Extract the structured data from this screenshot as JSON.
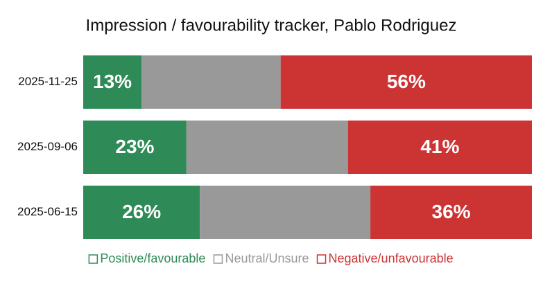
{
  "chart_data": {
    "type": "stacked-bar",
    "orientation": "horizontal",
    "title": "Impression / favourability tracker, Pablo Rodriguez",
    "categories": [
      "2025-11-25",
      "2025-09-06",
      "2025-06-15"
    ],
    "xlim": [
      0,
      100
    ],
    "series": [
      {
        "name": "Positive/favourable",
        "color": "#2e8b57",
        "values": [
          13,
          23,
          26
        ],
        "value_labels": [
          "13%",
          "23%",
          "26%"
        ]
      },
      {
        "name": "Neutral/Unsure",
        "color": "#999999",
        "values": [
          31,
          36,
          38
        ]
      },
      {
        "name": "Negative/unfavourable",
        "color": "#cc3333",
        "values": [
          56,
          41,
          36
        ],
        "value_labels": [
          "56%",
          "41%",
          "36%"
        ]
      }
    ],
    "legend": "bottom"
  }
}
